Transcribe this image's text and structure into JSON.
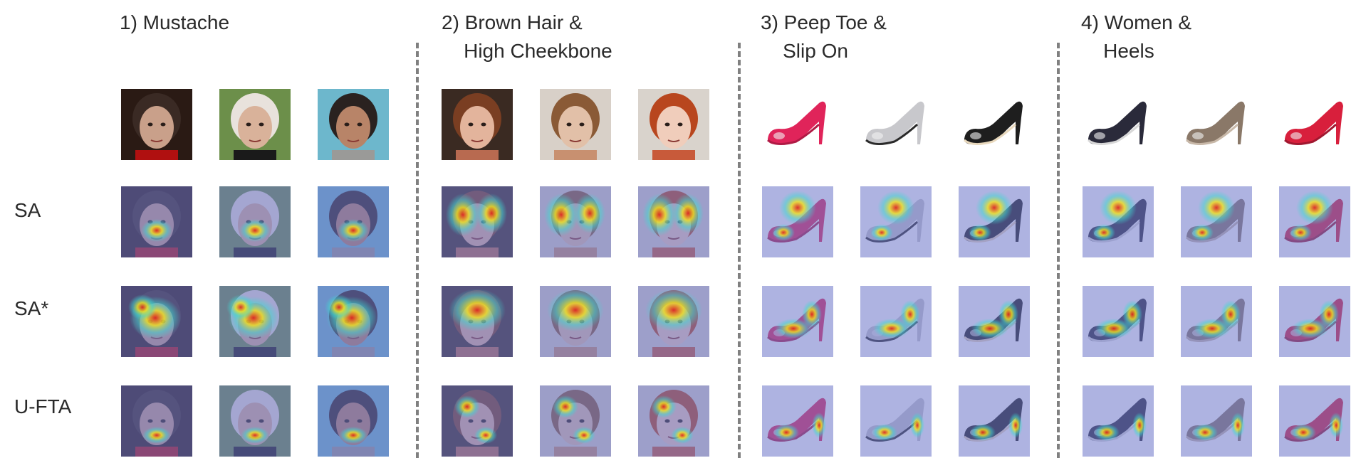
{
  "groups": [
    {
      "title": "1) Mustache",
      "subject": "face"
    },
    {
      "title": "2) Brown Hair &\n    High Cheekbone",
      "subject": "face"
    },
    {
      "title": "3) Peep Toe &\n    Slip On",
      "subject": "shoe"
    },
    {
      "title": "4) Women &\n    Heels",
      "subject": "shoe"
    }
  ],
  "rows": [
    {
      "label": ""
    },
    {
      "label": "SA"
    },
    {
      "label": "SA*"
    },
    {
      "label": "U-FTA"
    }
  ],
  "colors": {
    "overlay_blue": "#6b74c8",
    "heat_red": "#e0201a",
    "heat_yellow": "#f2e21c",
    "heat_cyan": "#40d8d0",
    "divider": "#808080"
  },
  "images": {
    "faces": [
      {
        "skin": "#c9a08a",
        "hair": "#3a2a24",
        "bg": "#2a1a14",
        "accent": "#b01010"
      },
      {
        "skin": "#d9b29a",
        "hair": "#e8e2dc",
        "bg": "#6c8f4a",
        "accent": "#1a1a1a"
      },
      {
        "skin": "#b88468",
        "hair": "#2a2220",
        "bg": "#6db7cc",
        "accent": "#9a9a98"
      },
      {
        "skin": "#e3b49c",
        "hair": "#7a3e22",
        "bg": "#3a2a22",
        "accent": "#b86a50"
      },
      {
        "skin": "#e2c0a8",
        "hair": "#8a5a36",
        "bg": "#d8d0c8",
        "accent": "#c89070"
      },
      {
        "skin": "#f0cdbb",
        "hair": "#b8461e",
        "bg": "#d9d3cc",
        "accent": "#c85a3a"
      }
    ],
    "shoes": [
      {
        "color": "#e0245a",
        "sole": "#b01a45"
      },
      {
        "color": "#c8c8cc",
        "sole": "#2a2a2a"
      },
      {
        "color": "#1e1e1e",
        "sole": "#e8d8bc"
      },
      {
        "color": "#2a2a3a",
        "sole": "#d8d8d8"
      },
      {
        "color": "#8a7868",
        "sole": "#c8b8a8"
      },
      {
        "color": "#d81f3c",
        "sole": "#a01830"
      }
    ]
  }
}
